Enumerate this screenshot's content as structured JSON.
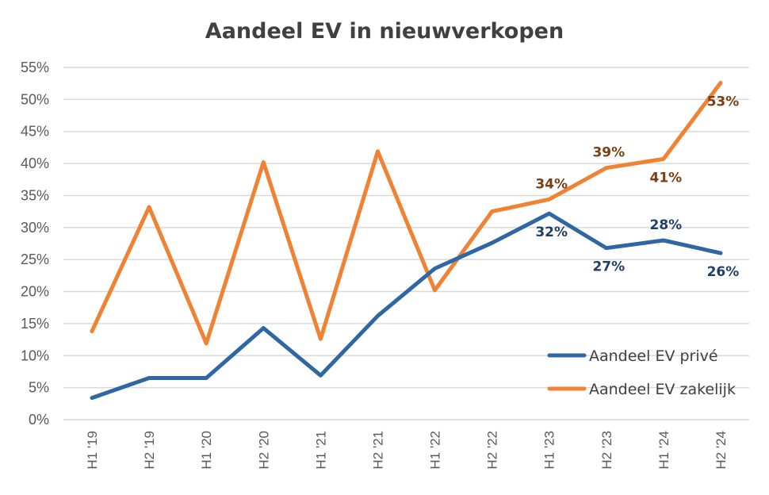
{
  "chart_data": {
    "type": "line",
    "title": "Aandeel EV in nieuwverkopen",
    "categories": [
      "H1 '19",
      "H2 '19",
      "H1 '20",
      "H2 '20",
      "H1 '21",
      "H2 '21",
      "H1 '22",
      "H2 '22",
      "H1 '23",
      "H2 '23",
      "H1 '24",
      "H2 '24"
    ],
    "ylim": [
      0,
      55
    ],
    "yticks": [
      0,
      5,
      10,
      15,
      20,
      25,
      30,
      35,
      40,
      45,
      50,
      55
    ],
    "ytick_labels": [
      "0%",
      "5%",
      "10%",
      "15%",
      "20%",
      "25%",
      "30%",
      "35%",
      "40%",
      "45%",
      "50%",
      "55%"
    ],
    "grid": true,
    "legend_position": "bottom-right",
    "series": [
      {
        "name": "Aandeel EV privé",
        "color": "#2e67a3",
        "label_color": "#1f3f6b",
        "values": [
          3.4,
          6.5,
          6.5,
          14.3,
          6.9,
          16.2,
          23.6,
          27.6,
          32.2,
          26.8,
          28.0,
          26.0
        ],
        "data_labels": [
          {
            "index": 8,
            "text": "32%",
            "position": "below"
          },
          {
            "index": 9,
            "text": "27%",
            "position": "below"
          },
          {
            "index": 10,
            "text": "28%",
            "position": "above"
          },
          {
            "index": 11,
            "text": "26%",
            "position": "below"
          }
        ]
      },
      {
        "name": "Aandeel EV zakelijk",
        "color": "#ef8233",
        "label_color": "#7b3f12",
        "values": [
          13.8,
          33.2,
          11.9,
          40.2,
          12.6,
          41.9,
          20.2,
          32.5,
          34.4,
          39.3,
          40.7,
          52.6
        ],
        "data_labels": [
          {
            "index": 8,
            "text": "34%",
            "position": "above"
          },
          {
            "index": 9,
            "text": "39%",
            "position": "above"
          },
          {
            "index": 10,
            "text": "41%",
            "position": "below"
          },
          {
            "index": 11,
            "text": "53%",
            "position": "below"
          }
        ]
      }
    ]
  }
}
